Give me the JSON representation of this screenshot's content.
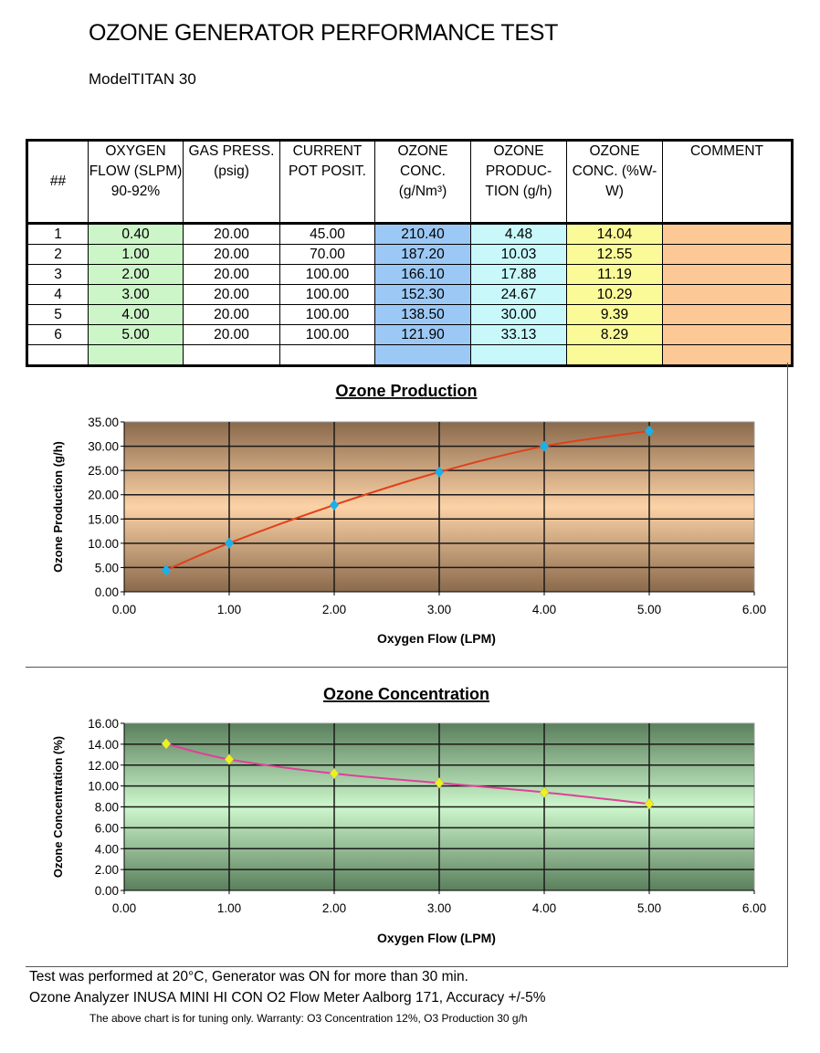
{
  "header": {
    "title": "OZONE GENERATOR PERFORMANCE TEST",
    "model": "ModelTITAN 30"
  },
  "table": {
    "columns": [
      "##",
      "OXYGEN FLOW (SLPM) 90-92%",
      "GAS PRESS. (psig)",
      "CURRENT POT POSIT.",
      "OZONE CONC. (g/Nm³)",
      "OZONE PRODUC-TION (g/h)",
      "OZONE CONC. (%W-W)",
      "COMMENT"
    ],
    "column_colors": [
      "#ffffff",
      "#ccf5c8",
      "#ffffff",
      "#ffffff",
      "#9cc8f5",
      "#c8f8fa",
      "#fbfa98",
      "#fcc896"
    ],
    "rows": [
      [
        "1",
        "0.40",
        "20.00",
        "45.00",
        "210.40",
        "4.48",
        "14.04",
        ""
      ],
      [
        "2",
        "1.00",
        "20.00",
        "70.00",
        "187.20",
        "10.03",
        "12.55",
        ""
      ],
      [
        "3",
        "2.00",
        "20.00",
        "100.00",
        "166.10",
        "17.88",
        "11.19",
        ""
      ],
      [
        "4",
        "3.00",
        "20.00",
        "100.00",
        "152.30",
        "24.67",
        "10.29",
        ""
      ],
      [
        "5",
        "4.00",
        "20.00",
        "100.00",
        "138.50",
        "30.00",
        "9.39",
        ""
      ],
      [
        "6",
        "5.00",
        "20.00",
        "100.00",
        "121.90",
        "33.13",
        "8.29",
        ""
      ],
      [
        "",
        "",
        "",
        "",
        "",
        "",
        "",
        ""
      ]
    ]
  },
  "chart_data": [
    {
      "type": "line",
      "title": "Ozone Production",
      "xlabel": "Oxygen Flow (LPM)",
      "ylabel": "Ozone Production (g/h)",
      "x": [
        0.4,
        1.0,
        2.0,
        3.0,
        4.0,
        5.0
      ],
      "y": [
        4.48,
        10.03,
        17.88,
        24.67,
        30.0,
        33.13
      ],
      "xlim": [
        0,
        6
      ],
      "ylim": [
        0,
        35
      ],
      "xticks": [
        "0.00",
        "1.00",
        "2.00",
        "3.00",
        "4.00",
        "5.00",
        "6.00"
      ],
      "yticks": [
        "0.00",
        "5.00",
        "10.00",
        "15.00",
        "20.00",
        "25.00",
        "30.00",
        "35.00"
      ],
      "grid": true,
      "line_color": "#e0401a",
      "marker_color": "#1ab0e8"
    },
    {
      "type": "line",
      "title": "Ozone Concentration",
      "xlabel": "Oxygen Flow (LPM)",
      "ylabel": "Ozone Concentration (%)",
      "x": [
        0.4,
        1.0,
        2.0,
        3.0,
        4.0,
        5.0
      ],
      "y": [
        14.04,
        12.55,
        11.19,
        10.29,
        9.39,
        8.29
      ],
      "xlim": [
        0,
        6
      ],
      "ylim": [
        0,
        16
      ],
      "xticks": [
        "0.00",
        "1.00",
        "2.00",
        "3.00",
        "4.00",
        "5.00",
        "6.00"
      ],
      "yticks": [
        "0.00",
        "2.00",
        "4.00",
        "6.00",
        "8.00",
        "10.00",
        "12.00",
        "14.00",
        "16.00"
      ],
      "grid": true,
      "line_color": "#e0409a",
      "marker_color": "#f0f020"
    }
  ],
  "footer": {
    "line1": "Test was performed at 20°C, Generator was ON for more than 30 min.",
    "line2": "Ozone Analyzer INUSA MINI HI CON O2 Flow Meter Aalborg 171, Accuracy +/-5%",
    "note": "The above chart is for tuning only. Warranty: O3 Concentration 12%, O3 Production 30 g/h"
  }
}
